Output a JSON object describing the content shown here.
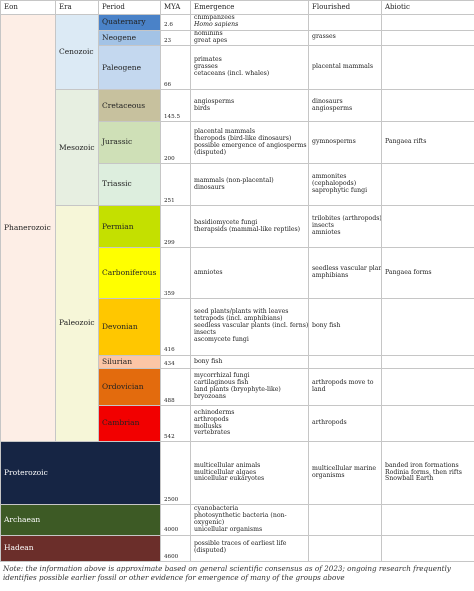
{
  "headers": {
    "eon": "Eon",
    "era": "Era",
    "period": "Period",
    "mya": "MYA",
    "emergence": "Emergence",
    "flourished": "Flourished",
    "abiotic": "Abiotic"
  },
  "eons": {
    "phanerozoic": {
      "label": "Phanerozoic",
      "color": "#fdeee6"
    },
    "proterozoic": {
      "label": "Proterozoic",
      "color": "#162544"
    },
    "archaean": {
      "label": "Archaean",
      "color": "#3d5a25"
    },
    "hadean": {
      "label": "Hadean",
      "color": "#6b2e2a"
    }
  },
  "eras": {
    "cenozoic": {
      "label": "Cenozoic",
      "color": "#dceaf5"
    },
    "mesozoic": {
      "label": "Mesozoic",
      "color": "#e7efe1"
    },
    "paleozoic": {
      "label": "Paleozoic",
      "color": "#f6f6d8"
    }
  },
  "periods": [
    {
      "name": "Quaternary",
      "color": "#4a82c8",
      "mya": "2.6",
      "emergence": [
        "chimpanzees",
        "Homo sapiens"
      ],
      "flourished": [],
      "abiotic": []
    },
    {
      "name": "Neogene",
      "color": "#a3c3e6",
      "mya": "23",
      "emergence": [
        "hominins",
        "great apes"
      ],
      "flourished": [
        "grasses"
      ],
      "abiotic": []
    },
    {
      "name": "Paleogene",
      "color": "#c4d8ef",
      "mya": "66",
      "emergence": [
        "primates",
        "grasses",
        "cetaceans (incl. whales)"
      ],
      "flourished": [
        "placental mammals"
      ],
      "abiotic": []
    },
    {
      "name": "Cretaceous",
      "color": "#c7c19e",
      "mya": "145.5",
      "emergence": [
        "angiosperms",
        "birds"
      ],
      "flourished": [
        "dinosaurs",
        "angiosperms"
      ],
      "abiotic": []
    },
    {
      "name": "Jurassic",
      "color": "#cfe0b7",
      "mya": "200",
      "emergence": [
        "placental mammals",
        "theropods (bird-like dinosaurs)",
        "possible emergence of angiosperms",
        "(disputed)"
      ],
      "flourished": [
        "gymnosperms"
      ],
      "abiotic": [
        "Pangaea rifts"
      ]
    },
    {
      "name": "Triassic",
      "color": "#ddeede",
      "mya": "251",
      "emergence": [
        "mammals (non-placental)",
        "dinosaurs"
      ],
      "flourished": [
        "ammonites",
        "(cephalopods)",
        "saprophytic fungi"
      ],
      "abiotic": []
    },
    {
      "name": "Permian",
      "color": "#c4e000",
      "mya": "299",
      "emergence": [
        "basidiomycete fungi",
        "therapsids (mammal-like reptiles)"
      ],
      "flourished": [
        "trilobites (arthropods)",
        "insects",
        "amniotes"
      ],
      "abiotic": []
    },
    {
      "name": "Carboniferous",
      "color": "#ffff00",
      "mya": "359",
      "emergence": [
        "amniotes"
      ],
      "flourished": [
        "seedless vascular plants",
        "amphibians"
      ],
      "abiotic": [
        "Pangaea forms"
      ]
    },
    {
      "name": "Devonian",
      "color": "#ffc700",
      "mya": "416",
      "emergence": [
        "seed plants/plants with leaves",
        "tetrapods (incl. amphibians)",
        "seedless vascular plants (incl. ferns)",
        "insects",
        "ascomycete fungi"
      ],
      "flourished": [
        "bony fish"
      ],
      "abiotic": []
    },
    {
      "name": "Silurian",
      "color": "#fcc6a6",
      "mya": "434",
      "emergence": [
        "bony fish"
      ],
      "flourished": [],
      "abiotic": []
    },
    {
      "name": "Ordovician",
      "color": "#e36b0d",
      "mya": "488",
      "emergence": [
        "mycorrhizal fungi",
        "cartilaginous fish",
        "land plants (bryophyte-like)",
        "bryozoans"
      ],
      "flourished": [
        "arthropods move to",
        "land"
      ],
      "abiotic": []
    },
    {
      "name": "Cambrian",
      "color": "#f20000",
      "mya": "542",
      "emergence": [
        "echinoderms",
        "arthropods",
        "mollusks",
        "vertebrates"
      ],
      "flourished": [
        "arthropods"
      ],
      "abiotic": []
    }
  ],
  "precambrian": [
    {
      "key": "proterozoic",
      "mya": "2500",
      "emergence": [
        "multicellular animals",
        "multicellular algaes",
        "unicellular eukaryotes"
      ],
      "flourished": [
        "multicellular marine",
        "organisms"
      ],
      "abiotic": [
        "banded iron formations",
        "Rodinia forms, then rifts",
        "Snowball Earth"
      ]
    },
    {
      "key": "archaean",
      "mya": "4000",
      "emergence": [
        "cyanobacteria",
        "photosynthetic bacteria (non-",
        "oxygenic)",
        "unicellular organisms"
      ],
      "flourished": [],
      "abiotic": []
    },
    {
      "key": "hadean",
      "mya": "4600",
      "emergence": [
        "possible traces of earliest life",
        "(disputed)"
      ],
      "flourished": [],
      "abiotic": []
    }
  ],
  "note": "Note: the information above is approximate based on general scientific consensus as of 2023; ongoing research frequently identifies possible earlier fossil or other evidence for emergence of many of the groups above"
}
